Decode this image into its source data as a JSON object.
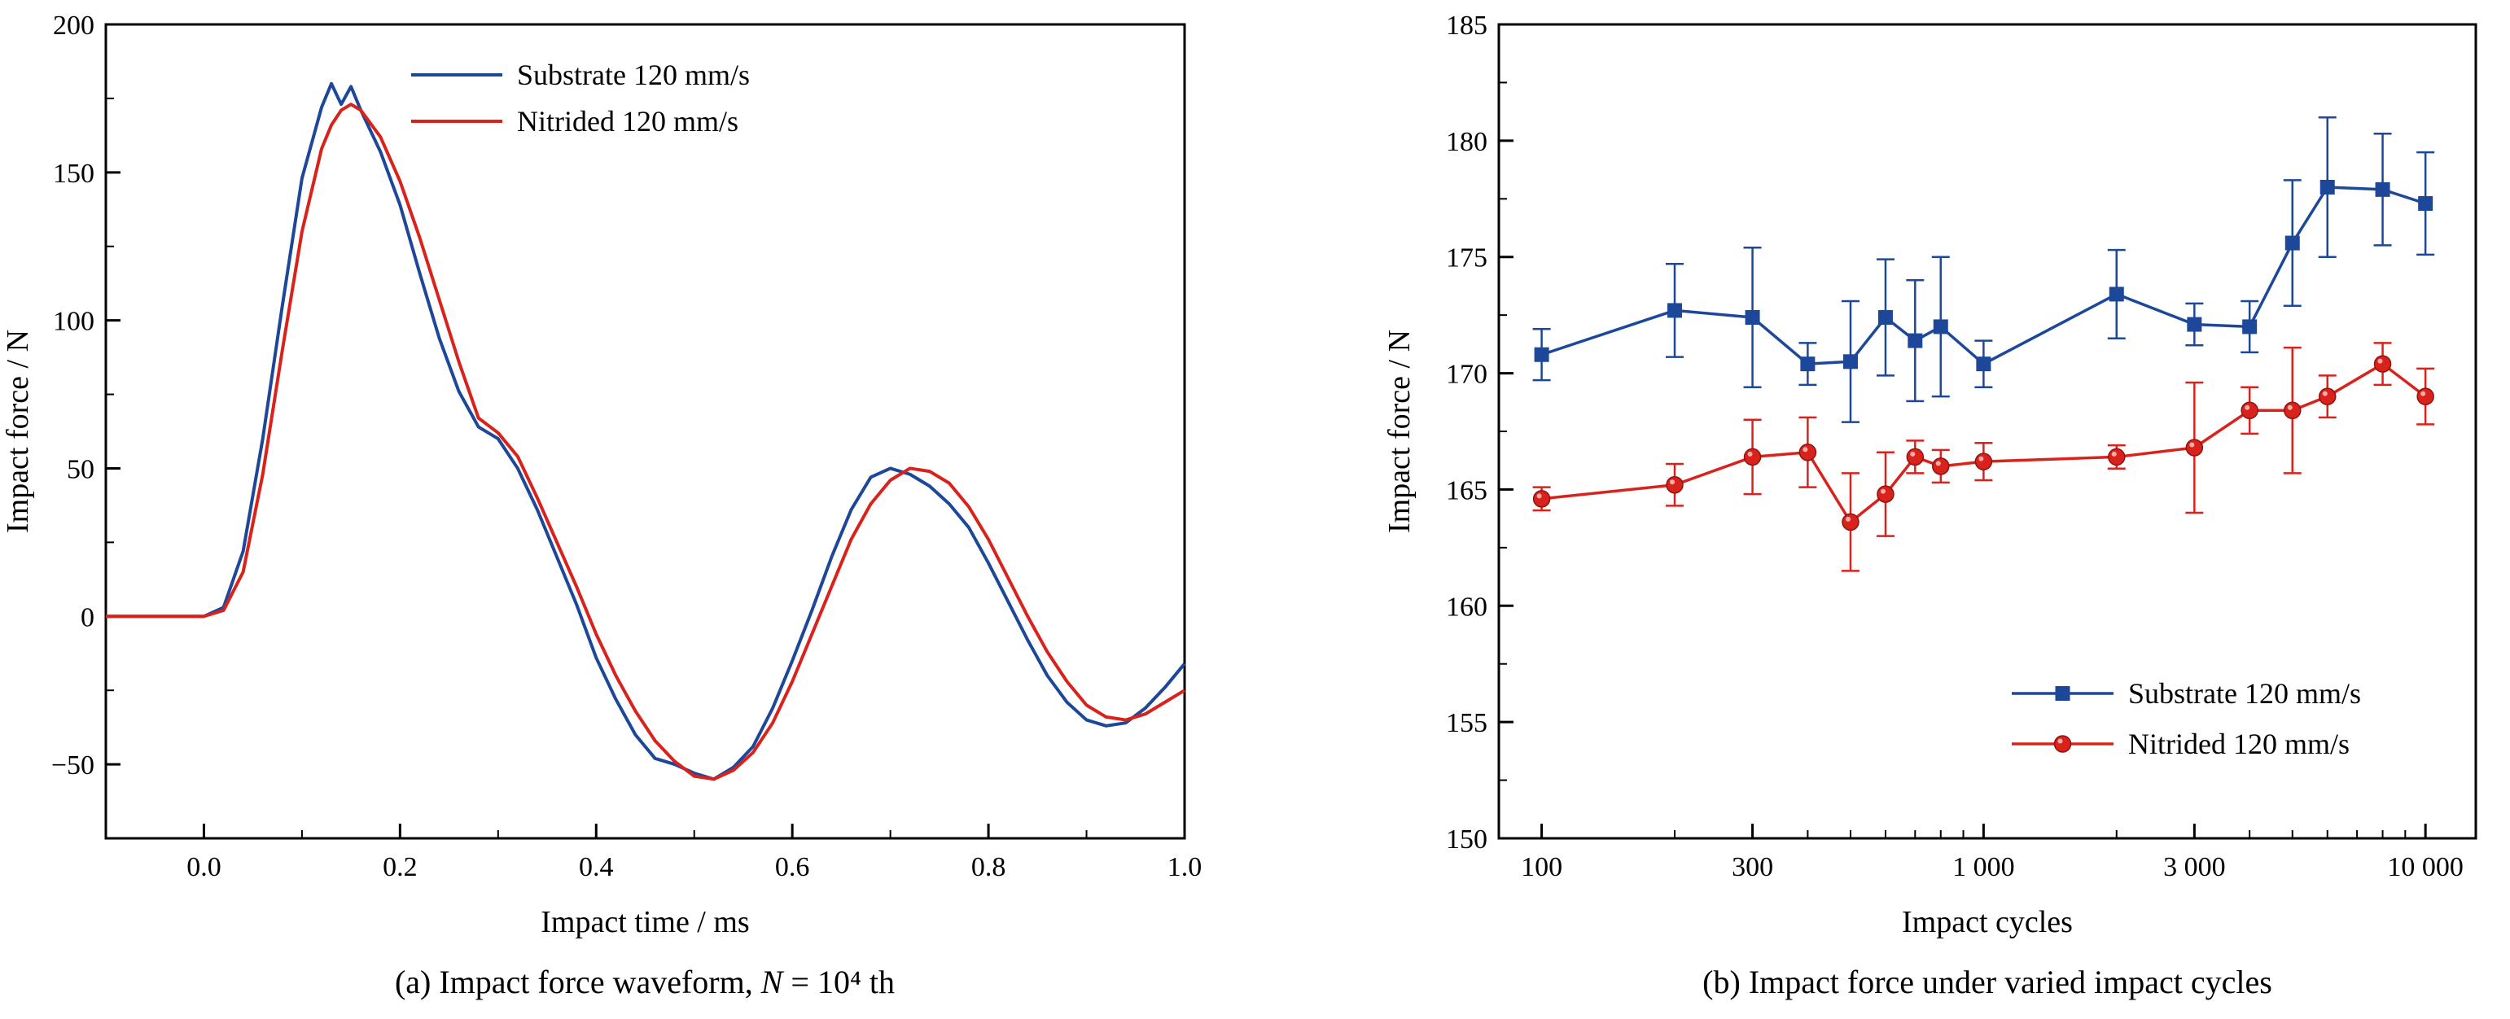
{
  "figure": {
    "background": "#ffffff"
  },
  "chart_data": [
    {
      "id": "a",
      "type": "line",
      "title": "",
      "xlabel": "Impact time / ms",
      "ylabel": "Impact force / N",
      "caption_prefix": "(a) Impact force waveform, ",
      "caption_var": "N",
      "caption_suffix": " = 10⁴ th",
      "xlim": [
        -0.1,
        1.0
      ],
      "ylim": [
        -75,
        200
      ],
      "grid": false,
      "legend_position": "top-inside",
      "xticks": [
        {
          "v": 0.0,
          "label": "0.0"
        },
        {
          "v": 0.2,
          "label": "0.2"
        },
        {
          "v": 0.4,
          "label": "0.4"
        },
        {
          "v": 0.6,
          "label": "0.6"
        },
        {
          "v": 0.8,
          "label": "0.8"
        },
        {
          "v": 1.0,
          "label": "1.0"
        }
      ],
      "xticks_minor": [
        0.1,
        0.3,
        0.5,
        0.7,
        0.9
      ],
      "yticks": [
        {
          "v": -50,
          "label": "−50"
        },
        {
          "v": 0,
          "label": "0"
        },
        {
          "v": 50,
          "label": "50"
        },
        {
          "v": 100,
          "label": "100"
        },
        {
          "v": 150,
          "label": "150"
        },
        {
          "v": 200,
          "label": "200"
        }
      ],
      "yticks_minor": [
        -25,
        25,
        75,
        125,
        175
      ],
      "series": [
        {
          "name": "Substrate 120 mm/s",
          "color": "#1d4899",
          "x": [
            -0.1,
            -0.05,
            0.0,
            0.02,
            0.04,
            0.06,
            0.08,
            0.1,
            0.12,
            0.13,
            0.14,
            0.15,
            0.16,
            0.18,
            0.2,
            0.22,
            0.24,
            0.26,
            0.28,
            0.3,
            0.32,
            0.34,
            0.36,
            0.38,
            0.4,
            0.42,
            0.44,
            0.46,
            0.48,
            0.5,
            0.52,
            0.54,
            0.56,
            0.58,
            0.6,
            0.62,
            0.64,
            0.66,
            0.68,
            0.7,
            0.72,
            0.74,
            0.76,
            0.78,
            0.8,
            0.82,
            0.84,
            0.86,
            0.88,
            0.9,
            0.92,
            0.94,
            0.96,
            0.98,
            1.0
          ],
          "y": [
            0,
            0,
            0,
            3,
            22,
            60,
            105,
            148,
            172,
            180,
            173,
            179,
            171,
            157,
            139,
            116,
            94,
            76,
            64,
            60,
            50,
            36,
            20,
            4,
            -14,
            -28,
            -40,
            -48,
            -50,
            -53,
            -55,
            -51,
            -44,
            -31,
            -15,
            2,
            20,
            36,
            47,
            50,
            48,
            44,
            38,
            30,
            18,
            5,
            -8,
            -20,
            -29,
            -35,
            -37,
            -36,
            -31,
            -24,
            -16
          ]
        },
        {
          "name": "Nitrided  120 mm/s",
          "color": "#da221c",
          "x": [
            -0.1,
            -0.05,
            0.0,
            0.02,
            0.04,
            0.06,
            0.08,
            0.1,
            0.12,
            0.13,
            0.14,
            0.15,
            0.16,
            0.18,
            0.2,
            0.22,
            0.24,
            0.26,
            0.28,
            0.3,
            0.32,
            0.34,
            0.36,
            0.38,
            0.4,
            0.42,
            0.44,
            0.46,
            0.48,
            0.5,
            0.52,
            0.54,
            0.56,
            0.58,
            0.6,
            0.62,
            0.64,
            0.66,
            0.68,
            0.7,
            0.72,
            0.74,
            0.76,
            0.78,
            0.8,
            0.82,
            0.84,
            0.86,
            0.88,
            0.9,
            0.92,
            0.94,
            0.96,
            0.98,
            1.0
          ],
          "y": [
            0,
            0,
            0,
            2,
            15,
            48,
            90,
            130,
            158,
            166,
            171,
            173,
            171,
            162,
            147,
            128,
            107,
            86,
            67,
            62,
            54,
            40,
            25,
            10,
            -6,
            -20,
            -32,
            -42,
            -49,
            -54,
            -55,
            -52,
            -46,
            -36,
            -22,
            -6,
            10,
            26,
            38,
            46,
            50,
            49,
            45,
            37,
            26,
            13,
            0,
            -12,
            -22,
            -30,
            -34,
            -35,
            -33,
            -29,
            -25
          ]
        }
      ]
    },
    {
      "id": "b",
      "type": "line-errorbar",
      "title": "",
      "xscale": "log",
      "xlabel": "Impact cycles",
      "ylabel": "Impact force / N",
      "caption": "(b) Impact force under varied impact cycles",
      "xlim": [
        80,
        13000
      ],
      "ylim": [
        150,
        185
      ],
      "grid": false,
      "legend_position": "bottom-right-inside",
      "xticks": [
        {
          "v": 100,
          "label": "100"
        },
        {
          "v": 300,
          "label": "300"
        },
        {
          "v": 1000,
          "label": "1 000"
        },
        {
          "v": 3000,
          "label": "3 000"
        },
        {
          "v": 10000,
          "label": "10 000"
        }
      ],
      "xticks_minor": [
        200,
        400,
        500,
        600,
        700,
        800,
        900,
        2000,
        4000,
        5000,
        6000,
        7000,
        8000,
        9000
      ],
      "yticks": [
        {
          "v": 150,
          "label": "150"
        },
        {
          "v": 155,
          "label": "155"
        },
        {
          "v": 160,
          "label": "160"
        },
        {
          "v": 165,
          "label": "165"
        },
        {
          "v": 170,
          "label": "170"
        },
        {
          "v": 175,
          "label": "175"
        },
        {
          "v": 180,
          "label": "180"
        },
        {
          "v": 185,
          "label": "185"
        }
      ],
      "yticks_minor": [
        152.5,
        157.5,
        162.5,
        167.5,
        172.5,
        177.5,
        182.5
      ],
      "series": [
        {
          "name": "Substrate 120 mm/s",
          "color": "#1d4899",
          "marker": "square",
          "x": [
            100,
            200,
            300,
            400,
            500,
            600,
            700,
            800,
            1000,
            2000,
            3000,
            4000,
            5000,
            6000,
            8000,
            10000
          ],
          "y": [
            170.8,
            172.7,
            172.4,
            170.4,
            170.5,
            172.4,
            171.4,
            172.0,
            170.4,
            173.4,
            172.1,
            172.0,
            175.6,
            178.0,
            177.9,
            177.3
          ],
          "yerr": [
            1.1,
            2.0,
            3.0,
            0.9,
            2.6,
            2.5,
            2.6,
            3.0,
            1.0,
            1.9,
            0.9,
            1.1,
            2.7,
            3.0,
            2.4,
            2.2
          ]
        },
        {
          "name": "Nitrided 120 mm/s",
          "color": "#da221c",
          "marker": "circle",
          "x": [
            100,
            200,
            300,
            400,
            500,
            600,
            700,
            800,
            1000,
            2000,
            3000,
            4000,
            5000,
            6000,
            8000,
            10000
          ],
          "y": [
            164.6,
            165.2,
            166.4,
            166.6,
            163.6,
            164.8,
            166.4,
            166.0,
            166.2,
            166.4,
            166.8,
            168.4,
            168.4,
            169.0,
            170.4,
            169.0
          ],
          "yerr": [
            0.5,
            0.9,
            1.6,
            1.5,
            2.1,
            1.8,
            0.7,
            0.7,
            0.8,
            0.5,
            2.8,
            1.0,
            2.7,
            0.9,
            0.9,
            1.2
          ]
        }
      ]
    }
  ]
}
